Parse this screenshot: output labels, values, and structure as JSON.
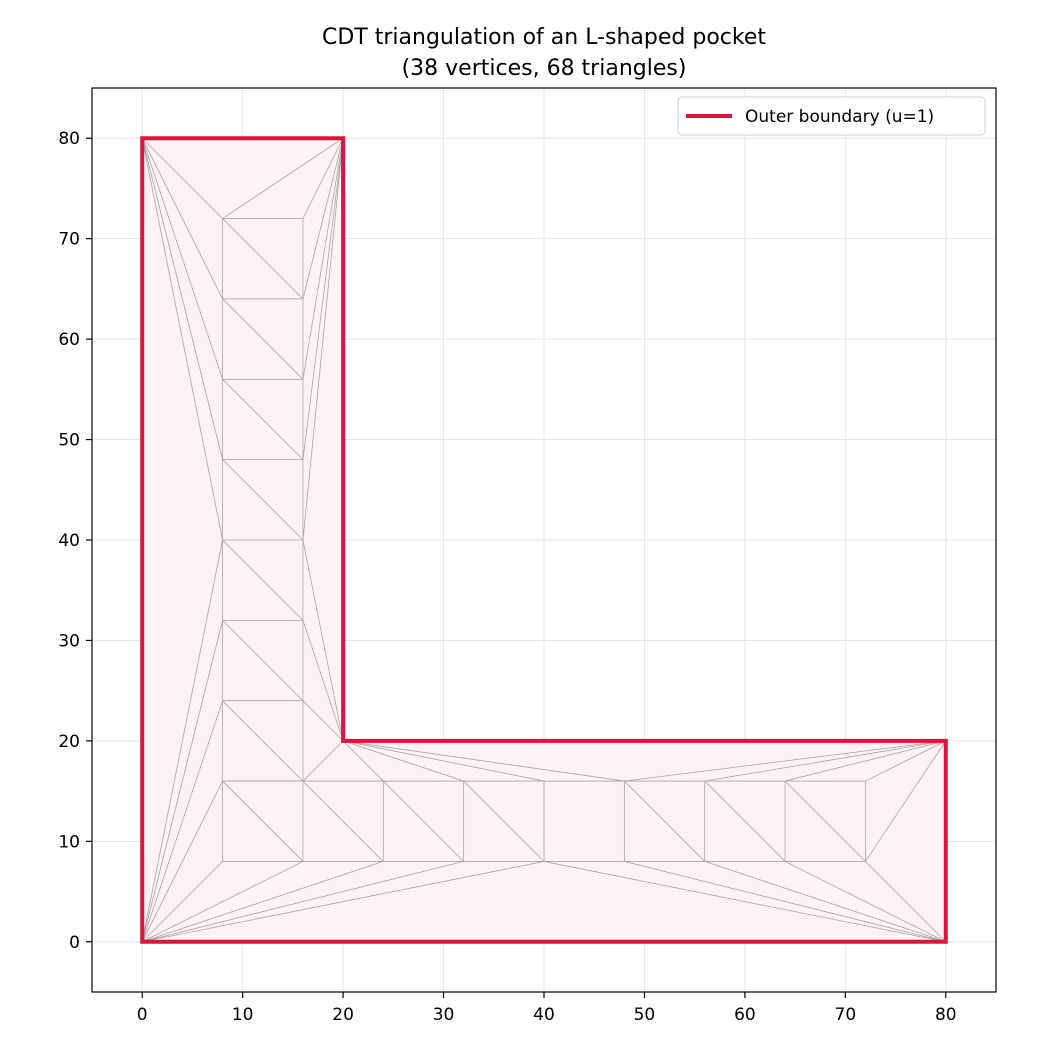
{
  "chart_data": {
    "type": "triangulation-plot",
    "title": "CDT triangulation of an L-shaped pocket",
    "subtitle": "(38 vertices, 68 triangles)",
    "xlabel": "",
    "ylabel": "",
    "xlim": [
      -5,
      85
    ],
    "ylim": [
      -5,
      85
    ],
    "xticks": [
      0,
      10,
      20,
      30,
      40,
      50,
      60,
      70,
      80
    ],
    "yticks": [
      0,
      10,
      20,
      30,
      40,
      50,
      60,
      70,
      80
    ],
    "grid": true,
    "legend": {
      "placement": "top-right",
      "entries": [
        {
          "name": "Outer boundary (u=1)",
          "color": "#dc143c"
        }
      ]
    },
    "colors": {
      "boundary": "#dc143c",
      "fill": "#fdf3f6",
      "mesh": "#a6a6a6",
      "grid": "#e6e6e6"
    },
    "boundary": [
      [
        0,
        0
      ],
      [
        80,
        0
      ],
      [
        80,
        20
      ],
      [
        20,
        20
      ],
      [
        20,
        80
      ],
      [
        0,
        80
      ]
    ],
    "mesh_segments": [
      [
        [
          0,
          80
        ],
        [
          8,
          72
        ]
      ],
      [
        [
          0,
          80
        ],
        [
          8,
          64
        ]
      ],
      [
        [
          0,
          80
        ],
        [
          8,
          56
        ]
      ],
      [
        [
          0,
          80
        ],
        [
          8,
          48
        ]
      ],
      [
        [
          0,
          80
        ],
        [
          8,
          40
        ]
      ],
      [
        [
          0,
          0
        ],
        [
          8,
          40
        ]
      ],
      [
        [
          0,
          0
        ],
        [
          8,
          32
        ]
      ],
      [
        [
          0,
          0
        ],
        [
          8,
          24
        ]
      ],
      [
        [
          0,
          0
        ],
        [
          8,
          16
        ]
      ],
      [
        [
          0,
          0
        ],
        [
          8,
          8
        ]
      ],
      [
        [
          0,
          0
        ],
        [
          16,
          8
        ]
      ],
      [
        [
          0,
          0
        ],
        [
          24,
          8
        ]
      ],
      [
        [
          0,
          0
        ],
        [
          32,
          8
        ]
      ],
      [
        [
          0,
          0
        ],
        [
          40,
          8
        ]
      ],
      [
        [
          20,
          80
        ],
        [
          8,
          72
        ]
      ],
      [
        [
          20,
          80
        ],
        [
          16,
          72
        ]
      ],
      [
        [
          20,
          80
        ],
        [
          16,
          64
        ]
      ],
      [
        [
          20,
          80
        ],
        [
          16,
          56
        ]
      ],
      [
        [
          20,
          80
        ],
        [
          16,
          48
        ]
      ],
      [
        [
          20,
          80
        ],
        [
          16,
          40
        ]
      ],
      [
        [
          20,
          20
        ],
        [
          16,
          40
        ]
      ],
      [
        [
          20,
          20
        ],
        [
          16,
          32
        ]
      ],
      [
        [
          20,
          20
        ],
        [
          16,
          24
        ]
      ],
      [
        [
          20,
          20
        ],
        [
          16,
          16
        ]
      ],
      [
        [
          20,
          20
        ],
        [
          24,
          16
        ]
      ],
      [
        [
          20,
          20
        ],
        [
          32,
          16
        ]
      ],
      [
        [
          20,
          20
        ],
        [
          40,
          16
        ]
      ],
      [
        [
          20,
          20
        ],
        [
          48,
          16
        ]
      ],
      [
        [
          80,
          20
        ],
        [
          48,
          16
        ]
      ],
      [
        [
          80,
          20
        ],
        [
          56,
          16
        ]
      ],
      [
        [
          80,
          20
        ],
        [
          64,
          16
        ]
      ],
      [
        [
          80,
          20
        ],
        [
          72,
          16
        ]
      ],
      [
        [
          80,
          20
        ],
        [
          72,
          8
        ]
      ],
      [
        [
          80,
          0
        ],
        [
          72,
          8
        ]
      ],
      [
        [
          80,
          0
        ],
        [
          64,
          8
        ]
      ],
      [
        [
          80,
          0
        ],
        [
          56,
          8
        ]
      ],
      [
        [
          80,
          0
        ],
        [
          48,
          8
        ]
      ],
      [
        [
          80,
          0
        ],
        [
          40,
          8
        ]
      ],
      [
        [
          8,
          16
        ],
        [
          8,
          72
        ]
      ],
      [
        [
          16,
          16
        ],
        [
          16,
          72
        ]
      ],
      [
        [
          8,
          72
        ],
        [
          16,
          72
        ]
      ],
      [
        [
          8,
          64
        ],
        [
          16,
          64
        ]
      ],
      [
        [
          8,
          56
        ],
        [
          16,
          56
        ]
      ],
      [
        [
          8,
          48
        ],
        [
          16,
          48
        ]
      ],
      [
        [
          8,
          40
        ],
        [
          16,
          40
        ]
      ],
      [
        [
          8,
          32
        ],
        [
          16,
          32
        ]
      ],
      [
        [
          8,
          24
        ],
        [
          16,
          24
        ]
      ],
      [
        [
          8,
          16
        ],
        [
          16,
          16
        ]
      ],
      [
        [
          8,
          72
        ],
        [
          16,
          64
        ]
      ],
      [
        [
          8,
          64
        ],
        [
          16,
          56
        ]
      ],
      [
        [
          8,
          56
        ],
        [
          16,
          48
        ]
      ],
      [
        [
          8,
          48
        ],
        [
          16,
          40
        ]
      ],
      [
        [
          8,
          40
        ],
        [
          16,
          32
        ]
      ],
      [
        [
          8,
          32
        ],
        [
          16,
          24
        ]
      ],
      [
        [
          8,
          24
        ],
        [
          16,
          16
        ]
      ],
      [
        [
          8,
          8
        ],
        [
          8,
          16
        ]
      ],
      [
        [
          16,
          8
        ],
        [
          16,
          16
        ]
      ],
      [
        [
          24,
          8
        ],
        [
          24,
          16
        ]
      ],
      [
        [
          32,
          8
        ],
        [
          32,
          16
        ]
      ],
      [
        [
          40,
          8
        ],
        [
          40,
          16
        ]
      ],
      [
        [
          48,
          8
        ],
        [
          48,
          16
        ]
      ],
      [
        [
          56,
          8
        ],
        [
          56,
          16
        ]
      ],
      [
        [
          64,
          8
        ],
        [
          64,
          16
        ]
      ],
      [
        [
          72,
          8
        ],
        [
          72,
          16
        ]
      ],
      [
        [
          8,
          8
        ],
        [
          72,
          8
        ]
      ],
      [
        [
          8,
          16
        ],
        [
          72,
          16
        ]
      ],
      [
        [
          8,
          16
        ],
        [
          16,
          8
        ]
      ],
      [
        [
          16,
          16
        ],
        [
          24,
          8
        ]
      ],
      [
        [
          24,
          16
        ],
        [
          32,
          8
        ]
      ],
      [
        [
          32,
          16
        ],
        [
          40,
          8
        ]
      ],
      [
        [
          48,
          16
        ],
        [
          56,
          8
        ]
      ],
      [
        [
          56,
          16
        ],
        [
          64,
          8
        ]
      ],
      [
        [
          64,
          16
        ],
        [
          72,
          8
        ]
      ],
      [
        [
          8,
          16
        ],
        [
          16,
          16
        ]
      ]
    ]
  }
}
